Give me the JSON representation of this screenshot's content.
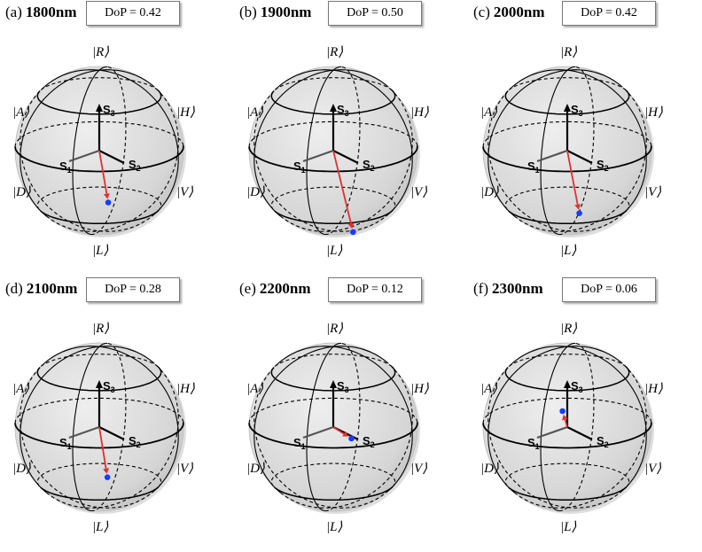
{
  "panels": [
    {
      "letter": "(a)",
      "wavelength": "1800nm",
      "dop": "DoP = 0.42",
      "vec": [
        0.11,
        -0.62,
        -0.41
      ]
    },
    {
      "letter": "(b)",
      "wavelength": "1900nm",
      "dop": "DoP = 0.50",
      "vec": [
        0.25,
        -0.55,
        -0.8
      ]
    },
    {
      "letter": "(c)",
      "wavelength": "2000nm",
      "dop": "DoP = 0.42",
      "vec": [
        0.15,
        -0.6,
        -0.55
      ]
    },
    {
      "letter": "(d)",
      "wavelength": "2100nm",
      "dop": "DoP = 0.28",
      "vec": [
        0.1,
        -0.1,
        -0.55
      ]
    },
    {
      "letter": "(e)",
      "wavelength": "2200nm",
      "dop": "DoP = 0.12",
      "vec": [
        0.2,
        0.1,
        -0.15
      ]
    },
    {
      "letter": "(f)",
      "wavelength": "2300nm",
      "dop": "DoP = 0.06",
      "vec": [
        -0.05,
        0.02,
        0.15
      ]
    }
  ],
  "state_labels": {
    "R": "|R⟩",
    "L": "|L⟩",
    "H": "|H⟩",
    "V": "|V⟩",
    "A": "|A⟩",
    "D": "|D⟩"
  },
  "axis_labels": {
    "s1": "S",
    "s1_sub": "1",
    "s2": "S",
    "s2_sub": "2",
    "s3": "S",
    "s3_sub": "3"
  },
  "colors": {
    "sphere_fill": "#d6d6d6",
    "vector": "#e03030",
    "point": "#1a3cff",
    "axis": "#000000"
  }
}
